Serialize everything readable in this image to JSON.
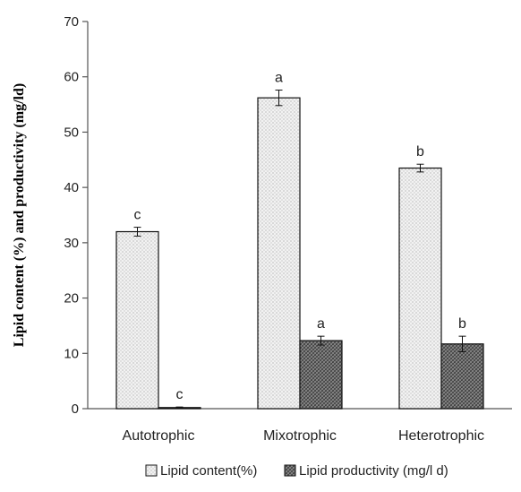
{
  "chart_data": {
    "type": "bar",
    "categories": [
      "Autotrophic",
      "Mixotrophic",
      "Heterotrophic"
    ],
    "series": [
      {
        "name": "Lipid content(%)",
        "values": [
          32,
          56.2,
          43.5
        ],
        "errors": [
          0.8,
          1.4,
          0.7
        ],
        "significance": [
          "c",
          "a",
          "b"
        ],
        "pattern": "light-dotted"
      },
      {
        "name": "Lipid productivity (mg/l d)",
        "values": [
          0.2,
          12.3,
          11.7
        ],
        "errors": [
          0.1,
          0.8,
          1.4
        ],
        "significance": [
          "c",
          "a",
          "b"
        ],
        "pattern": "dark-crosshatch"
      }
    ],
    "title": "",
    "xlabel": "",
    "ylabel": "Lipid content (%) and productivity (mg/ld)",
    "ylim": [
      0,
      70
    ],
    "yticks": [
      0,
      10,
      20,
      30,
      40,
      50,
      60,
      70
    ],
    "grid": false,
    "legend_position": "bottom"
  }
}
